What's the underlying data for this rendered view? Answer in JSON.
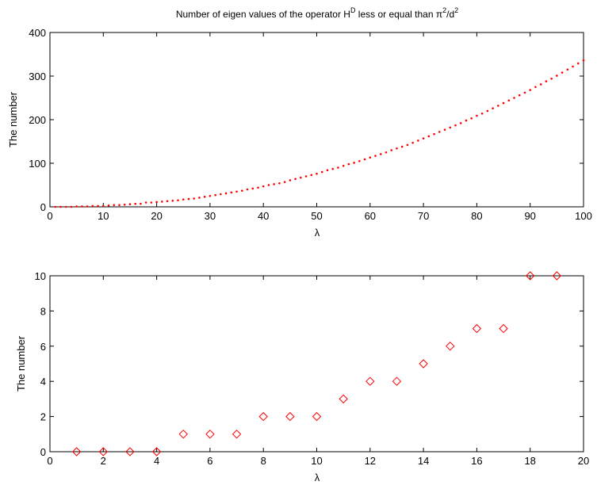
{
  "chart_data": [
    {
      "type": "scatter",
      "title": "Number of eigen values of the operator H",
      "title_sup_1": "D",
      "title_mid": " less or equal than π",
      "title_sup_2": "2",
      "title_mid_2": "/d",
      "title_sup_3": "2",
      "xlabel": "λ",
      "ylabel": "The number",
      "xlim": [
        0,
        100
      ],
      "ylim": [
        0,
        400
      ],
      "xticks": [
        0,
        10,
        20,
        30,
        40,
        50,
        60,
        70,
        80,
        90,
        100
      ],
      "yticks": [
        0,
        100,
        200,
        300,
        400
      ],
      "grid": false,
      "marker": "dot",
      "color": "#ff0000",
      "x": [
        1,
        2,
        3,
        4,
        5,
        6,
        7,
        8,
        9,
        10,
        11,
        12,
        13,
        14,
        15,
        16,
        17,
        18,
        19,
        20,
        21,
        22,
        23,
        24,
        25,
        26,
        27,
        28,
        29,
        30,
        31,
        32,
        33,
        34,
        35,
        36,
        37,
        38,
        39,
        40,
        41,
        42,
        43,
        44,
        45,
        46,
        47,
        48,
        49,
        50,
        51,
        52,
        53,
        54,
        55,
        56,
        57,
        58,
        59,
        60,
        61,
        62,
        63,
        64,
        65,
        66,
        67,
        68,
        69,
        70,
        71,
        72,
        73,
        74,
        75,
        76,
        77,
        78,
        79,
        80,
        81,
        82,
        83,
        84,
        85,
        86,
        87,
        88,
        89,
        90,
        91,
        92,
        93,
        94,
        95,
        96,
        97,
        98,
        99,
        100
      ],
      "values": [
        0,
        0,
        0,
        0,
        1,
        1,
        1,
        2,
        2,
        2,
        3,
        4,
        4,
        5,
        6,
        7,
        7,
        10,
        10,
        11,
        12,
        13,
        14,
        15,
        17,
        18,
        19,
        21,
        23,
        25,
        27,
        29,
        31,
        33,
        35,
        37,
        40,
        42,
        44,
        47,
        50,
        52,
        54,
        57,
        61,
        64,
        67,
        70,
        73,
        76,
        80,
        84,
        87,
        90,
        94,
        98,
        101,
        105,
        109,
        113,
        117,
        121,
        125,
        130,
        134,
        138,
        142,
        147,
        152,
        157,
        162,
        167,
        172,
        177,
        182,
        187,
        192,
        198,
        203,
        209,
        214,
        220,
        226,
        232,
        238,
        244,
        250,
        256,
        262,
        268,
        275,
        281,
        288,
        294,
        301,
        308,
        315,
        322,
        329,
        336
      ]
    },
    {
      "type": "scatter",
      "title": "",
      "xlabel": "λ",
      "ylabel": "The number",
      "xlim": [
        0,
        20
      ],
      "ylim": [
        0,
        10
      ],
      "xticks": [
        0,
        2,
        4,
        6,
        8,
        10,
        12,
        14,
        16,
        18,
        20
      ],
      "yticks": [
        0,
        2,
        4,
        6,
        8,
        10
      ],
      "grid": false,
      "marker": "diamond",
      "color": "#ff0000",
      "x": [
        1,
        2,
        3,
        4,
        5,
        6,
        7,
        8,
        9,
        10,
        11,
        12,
        13,
        14,
        15,
        16,
        17,
        18,
        19
      ],
      "values": [
        0,
        0,
        0,
        0,
        1,
        1,
        1,
        2,
        2,
        2,
        3,
        4,
        4,
        5,
        6,
        7,
        7,
        10,
        10
      ]
    }
  ]
}
